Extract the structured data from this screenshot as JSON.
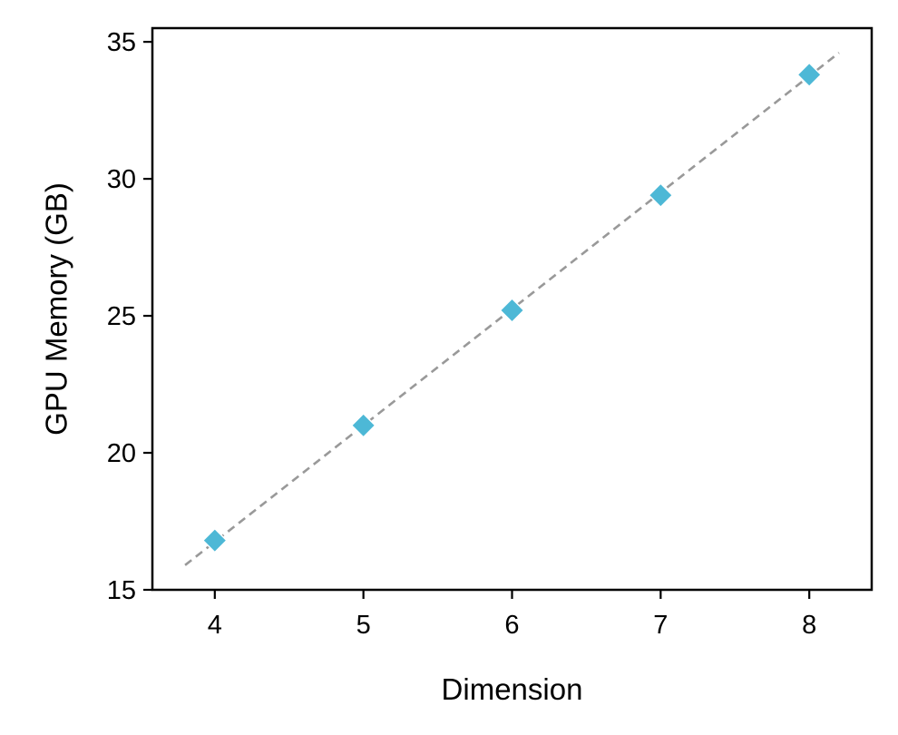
{
  "chart_data": {
    "type": "scatter",
    "xlabel": "Dimension",
    "ylabel": "GPU Memory (GB)",
    "xlim": [
      3.58,
      8.42
    ],
    "ylim": [
      15,
      35.5
    ],
    "x_ticks": [
      4,
      5,
      6,
      7,
      8
    ],
    "y_ticks": [
      15,
      20,
      25,
      30,
      35
    ],
    "grid": false,
    "legend": "none",
    "series": [
      {
        "marker": "diamond",
        "color": "#4db8d6",
        "x": [
          4,
          5,
          6,
          7,
          8
        ],
        "y": [
          16.8,
          21.0,
          25.2,
          29.4,
          33.8
        ]
      }
    ],
    "fit_line": {
      "style": "dashed",
      "color": "#999999",
      "x": [
        3.8,
        8.2
      ],
      "y": [
        15.9,
        34.6
      ]
    }
  }
}
